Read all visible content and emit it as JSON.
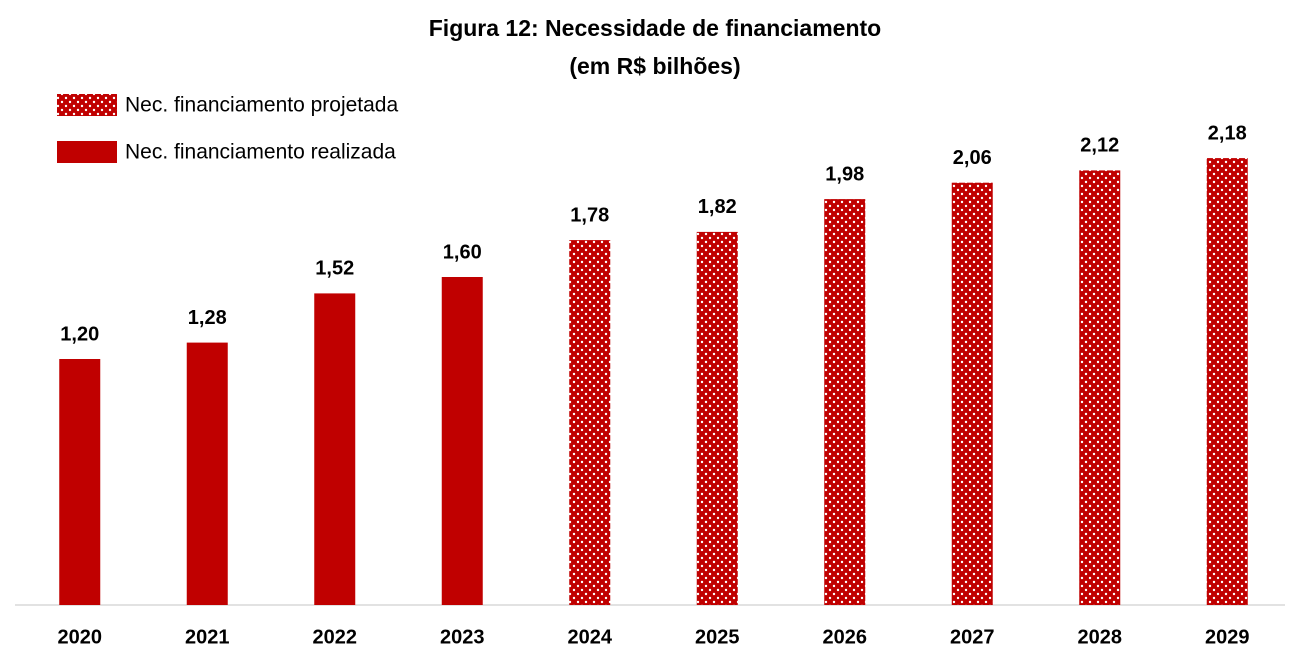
{
  "chart_data": {
    "type": "bar",
    "title": "Figura 12: Necessidade de financiamento",
    "subtitle": "(em R$ bilhões)",
    "categories": [
      "2020",
      "2021",
      "2022",
      "2023",
      "2024",
      "2025",
      "2026",
      "2027",
      "2028",
      "2029"
    ],
    "series": [
      {
        "name": "Nec. financiamento projetada",
        "color": "#c00000",
        "pattern": "dots",
        "values": [
          null,
          null,
          null,
          null,
          1.78,
          1.82,
          1.98,
          2.06,
          2.12,
          2.18
        ],
        "value_labels": [
          null,
          null,
          null,
          null,
          "1,78",
          "1,82",
          "1,98",
          "2,06",
          "2,12",
          "2,18"
        ]
      },
      {
        "name": "Nec. financiamento realizada",
        "color": "#c00000",
        "values": [
          1.2,
          1.28,
          1.52,
          1.6,
          null,
          null,
          null,
          null,
          null,
          null
        ],
        "value_labels": [
          "1,20",
          "1,28",
          "1,52",
          "1,60",
          null,
          null,
          null,
          null,
          null,
          null
        ]
      }
    ],
    "ylim": [
      0,
      2.2
    ],
    "legend": "top-left"
  }
}
